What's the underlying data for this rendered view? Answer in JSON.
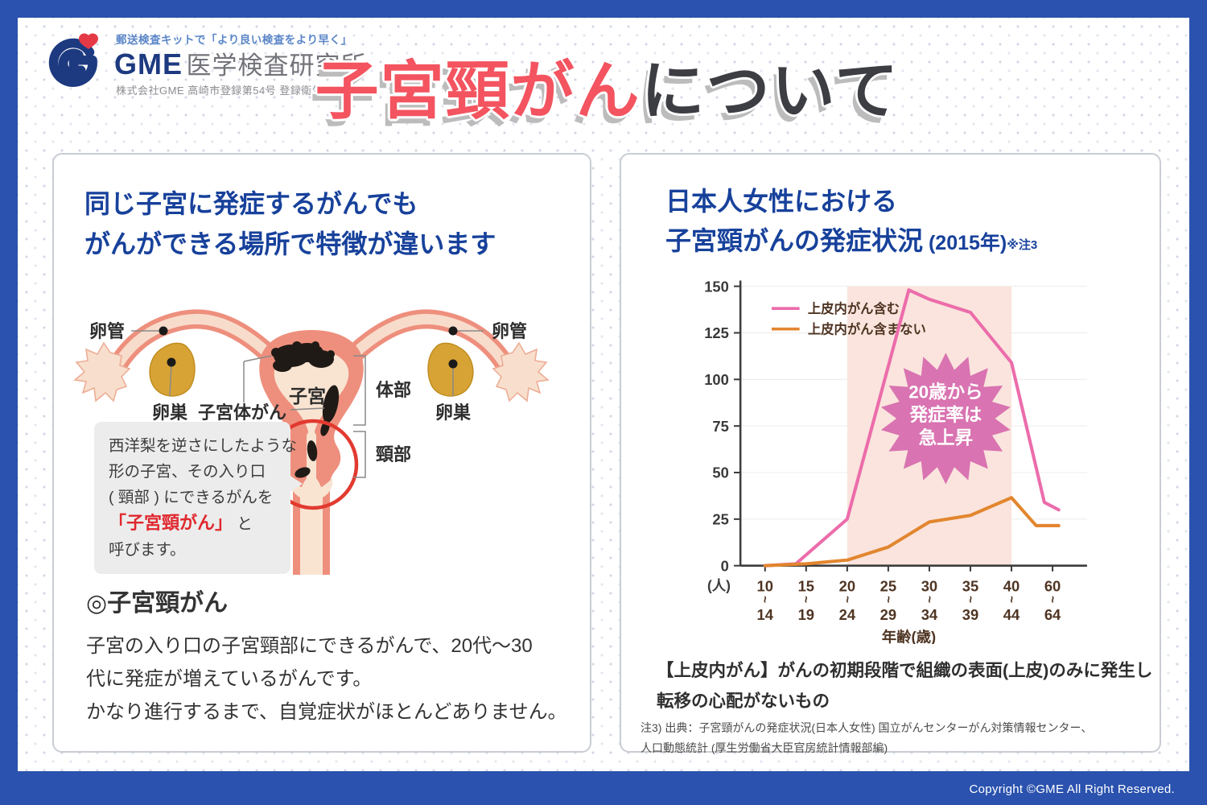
{
  "page": {
    "border_color": "#2a52ae",
    "copyright": "Copyright ©GME All Right Reserved."
  },
  "header": {
    "logo": {
      "tagline": "郵送検査キットで「より良い検査をより早く」",
      "brand": "GME",
      "brand_suffix": "医学検査研究所",
      "sub": "株式会社GME  高崎市登録第54号  登録衛生検査所"
    },
    "title_red": "子宮頸がん",
    "title_dark": "について"
  },
  "left_panel": {
    "heading_line1": "同じ子宮に発症するがんでも",
    "heading_line2": "がんができる場所で特徴が違います",
    "diagram_labels": {
      "tube_left": "卵管",
      "tube_right": "卵管",
      "ovary_left": "卵巣",
      "ovary_right": "卵巣",
      "corpus_cancer": "子宮体がん",
      "uterus": "子宮",
      "body": "体部",
      "cervix": "頸部"
    },
    "bubble": {
      "line1": "西洋梨を逆さにしたような",
      "line2": "形の子宮、その入り口",
      "line3": "( 頸部 ) にできるがんを",
      "line4_red": "「子宮頸がん」",
      "line4_tail": " と",
      "line5": "呼びます。"
    },
    "footer": {
      "heading": "◎子宮頸がん",
      "line1": "子宮の入り口の子宮頸部にできるがんで、20代～30",
      "line2": "代に発症が増えているがんです。",
      "line3": "かなり進行するまで、自覚症状がほとんどありません。"
    }
  },
  "right_panel": {
    "heading_line1": "日本人女性における",
    "heading_line2": "子宮頸がんの発症状況",
    "heading_year": " (2015年)",
    "heading_note_ref": "※注3",
    "note_line1": "【上皮内がん】がんの初期段階で組織の表面(上皮)のみに発生し",
    "note_line2": "転移の心配がないもの",
    "source_line1": "注3) 出典：子宮頸がんの発症状況(日本人女性) 国立がんセンターがん対策情報センター、",
    "source_line2": "人口動態統計 (厚生労働省大臣官房統計情報部編)"
  },
  "chart_data": {
    "type": "line",
    "title": "日本人女性における子宮頸がんの発症状況 (2015年)",
    "xlabel": "年齢(歳)",
    "ylabel": "(人)",
    "ylim": [
      0,
      150
    ],
    "yticks": [
      0,
      25,
      50,
      75,
      100,
      125,
      150
    ],
    "categories": [
      "10~14",
      "15~19",
      "20~24",
      "25~29",
      "30~34",
      "35~39",
      "40~44",
      "60~64"
    ],
    "series": [
      {
        "name": "上皮内がん含む",
        "color": "#ec6cab",
        "points": [
          [
            0,
            0
          ],
          [
            0.75,
            1
          ],
          [
            2,
            25
          ],
          [
            3.5,
            148
          ],
          [
            4,
            143
          ],
          [
            5,
            136
          ],
          [
            6,
            109
          ],
          [
            6.8,
            34
          ],
          [
            7.15,
            30
          ]
        ]
      },
      {
        "name": "上皮内がん含まない",
        "color": "#e2862f",
        "points": [
          [
            0,
            0
          ],
          [
            1,
            1
          ],
          [
            2,
            3
          ],
          [
            3,
            10
          ],
          [
            4,
            23.5
          ],
          [
            5,
            27
          ],
          [
            6,
            36.5
          ],
          [
            6.6,
            21.5
          ],
          [
            7.15,
            21.5
          ]
        ]
      }
    ],
    "highlight_region": {
      "from_idx": 2,
      "to_idx": 6,
      "color": "#fae4dd"
    },
    "badge": {
      "lines": [
        "20歳から",
        "発症率は",
        "急上昇"
      ],
      "color": "#d973b1",
      "text_color": "#ffffff",
      "at": [
        4.4,
        79
      ]
    },
    "legend_position": "top-left",
    "grid": false,
    "axis_color": "#3d3d3d",
    "label_color": "#4f3422"
  }
}
